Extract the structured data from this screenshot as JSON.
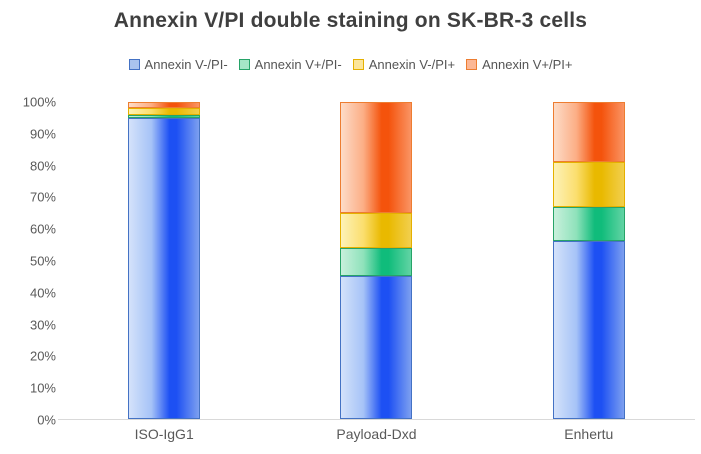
{
  "chart_data": {
    "type": "bar",
    "subtype": "stacked-100",
    "title": "Annexin V/PI double staining on SK-BR-3 cells",
    "categories": [
      "ISO-IgG1",
      "Payload-Dxd",
      "Enhertu"
    ],
    "series": [
      {
        "name": "Annexin V-/PI-",
        "values": [
          95,
          45,
          56
        ],
        "color": "#4472c4",
        "legend_fill": "#aac4ee",
        "grad": [
          "#d4e2fa",
          "#a6c3f7",
          "#1d50f3",
          "#7da0f0"
        ]
      },
      {
        "name": "Annexin V+/PI-",
        "values": [
          1,
          9,
          11
        ],
        "color": "#27a368",
        "legend_fill": "#a5e6c6",
        "grad": [
          "#c8f0dc",
          "#8fe2bb",
          "#10bc7b",
          "#62d4a4"
        ]
      },
      {
        "name": "Annexin V-/PI+",
        "values": [
          2,
          11,
          14
        ],
        "color": "#e5b000",
        "legend_fill": "#fce59a",
        "grad": [
          "#fdf2b8",
          "#fbde6e",
          "#e9b900",
          "#f2cf4e"
        ]
      },
      {
        "name": "Annexin V+/PI+",
        "values": [
          2,
          35,
          19
        ],
        "color": "#ed7d31",
        "legend_fill": "#fcb795",
        "grad": [
          "#fddcc8",
          "#fcae85",
          "#f4530c",
          "#fa9464"
        ]
      }
    ],
    "xlabel": "",
    "ylabel": "",
    "ylim": [
      0,
      100
    ],
    "y_ticks": [
      "0%",
      "10%",
      "20%",
      "30%",
      "40%",
      "50%",
      "60%",
      "70%",
      "80%",
      "90%",
      "100%"
    ],
    "grid": false,
    "legend_position": "top",
    "axis_line_color": "#d9d9d9",
    "title_color": "#3f3f3f",
    "label_color": "#595959"
  }
}
